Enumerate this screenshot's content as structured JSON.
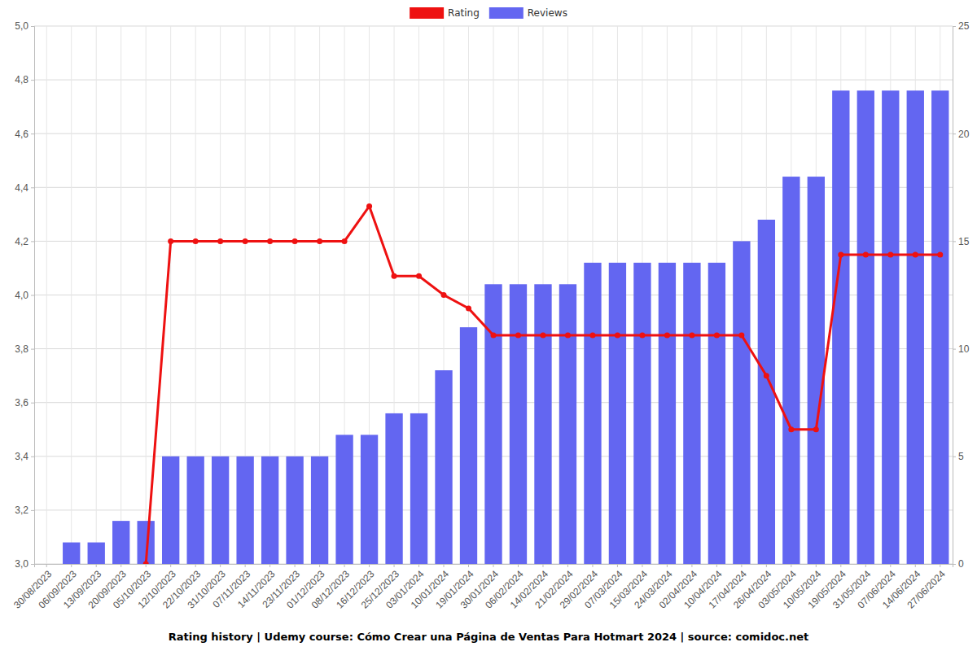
{
  "chart_data": {
    "type": "bar",
    "title": "Rating history | Udemy course: Cómo Crear una Página de Ventas Para Hotmart 2024 | source: comidoc.net",
    "categories": [
      "30/08/2023",
      "06/09/2023",
      "13/09/2023",
      "20/09/2023",
      "05/10/2023",
      "12/10/2023",
      "22/10/2023",
      "31/10/2023",
      "07/11/2023",
      "14/11/2023",
      "23/11/2023",
      "01/12/2023",
      "08/12/2023",
      "16/12/2023",
      "25/12/2023",
      "03/01/2024",
      "10/01/2024",
      "19/01/2024",
      "30/01/2024",
      "06/02/2024",
      "14/02/2024",
      "21/02/2024",
      "29/02/2024",
      "07/03/2024",
      "15/03/2024",
      "24/03/2024",
      "02/04/2024",
      "10/04/2024",
      "17/04/2024",
      "26/04/2024",
      "03/05/2024",
      "10/05/2024",
      "19/05/2024",
      "31/05/2024",
      "07/06/2024",
      "14/06/2024",
      "27/06/2024"
    ],
    "series": [
      {
        "name": "Rating",
        "type": "line",
        "color": "#ee1111",
        "marker": "circle",
        "values": [
          null,
          null,
          null,
          null,
          3.0,
          4.2,
          4.2,
          4.2,
          4.2,
          4.2,
          4.2,
          4.2,
          4.2,
          4.33,
          4.07,
          4.07,
          4.0,
          3.95,
          3.85,
          3.85,
          3.85,
          3.85,
          3.85,
          3.85,
          3.85,
          3.85,
          3.85,
          3.85,
          3.85,
          3.7,
          3.5,
          3.5,
          4.15,
          4.15,
          4.15,
          4.15,
          4.15
        ]
      },
      {
        "name": "Reviews",
        "type": "bar",
        "axis": "y2",
        "color": "#6366f1",
        "values": [
          0,
          1,
          1,
          2,
          2,
          5,
          5,
          5,
          5,
          5,
          5,
          5,
          6,
          6,
          7,
          7,
          9,
          11,
          13,
          13,
          13,
          13,
          14,
          14,
          14,
          14,
          14,
          14,
          15,
          16,
          18,
          18,
          22,
          22,
          22,
          22,
          22
        ]
      }
    ],
    "ylim": [
      3.0,
      5.0
    ],
    "yticks": [
      {
        "value": 3.0,
        "label": "3,0"
      },
      {
        "value": 3.2,
        "label": "3,2"
      },
      {
        "value": 3.4,
        "label": "3,4"
      },
      {
        "value": 3.6,
        "label": "3,6"
      },
      {
        "value": 3.8,
        "label": "3,8"
      },
      {
        "value": 4.0,
        "label": "4,0"
      },
      {
        "value": 4.2,
        "label": "4,2"
      },
      {
        "value": 4.4,
        "label": "4,4"
      },
      {
        "value": 4.6,
        "label": "4,6"
      },
      {
        "value": 4.8,
        "label": "4,8"
      },
      {
        "value": 5.0,
        "label": "5,0"
      }
    ],
    "y2lim": [
      0,
      25
    ],
    "y2ticks": [
      0,
      5,
      10,
      15,
      20,
      25
    ],
    "grid": true,
    "legend": "top"
  }
}
